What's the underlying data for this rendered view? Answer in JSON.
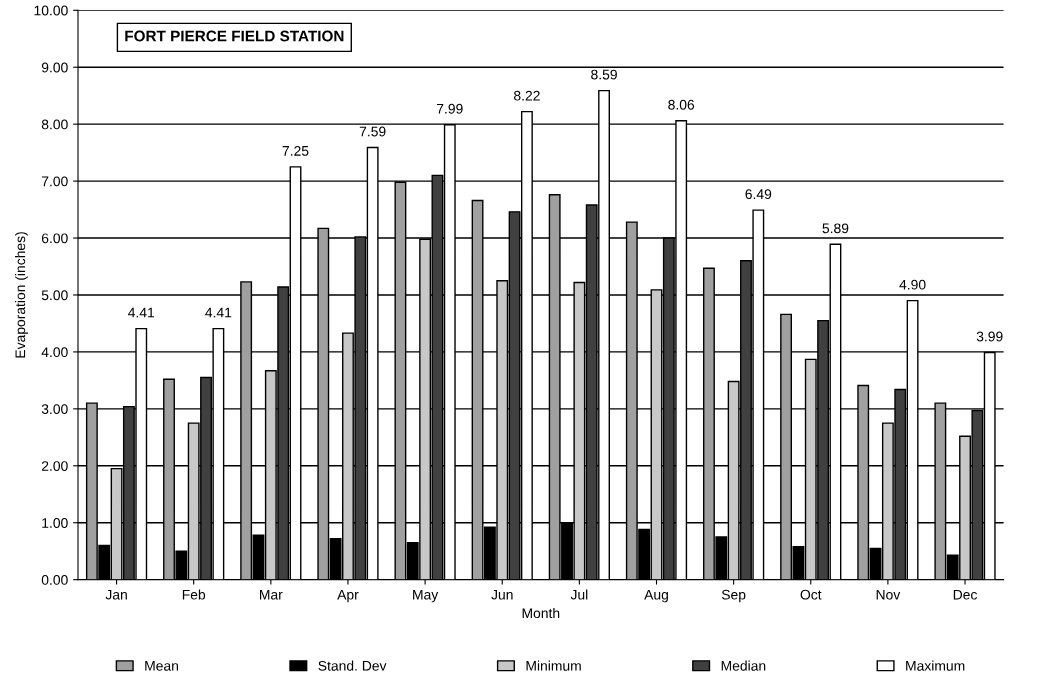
{
  "chart_data": {
    "type": "bar",
    "title": "FORT PIERCE FIELD STATION",
    "xlabel": "Month",
    "ylabel": "Evaporation (inches)",
    "categories": [
      "Jan",
      "Feb",
      "Mar",
      "Apr",
      "May",
      "Jun",
      "Jul",
      "Aug",
      "Sep",
      "Oct",
      "Nov",
      "Dec"
    ],
    "series": [
      {
        "name": "Mean",
        "color": "#a0a0a0",
        "values": [
          3.1,
          3.52,
          5.23,
          6.17,
          6.98,
          6.66,
          6.76,
          6.28,
          5.47,
          4.66,
          3.41,
          3.1
        ]
      },
      {
        "name": "Stand. Dev",
        "color": "#000000",
        "values": [
          0.6,
          0.5,
          0.78,
          0.72,
          0.65,
          0.92,
          0.99,
          0.88,
          0.75,
          0.58,
          0.55,
          0.43
        ]
      },
      {
        "name": "Minimum",
        "color": "#c8c8c8",
        "values": [
          1.95,
          2.75,
          3.67,
          4.33,
          5.98,
          5.25,
          5.22,
          5.09,
          3.48,
          3.87,
          2.75,
          2.52
        ]
      },
      {
        "name": "Median",
        "color": "#404040",
        "values": [
          3.04,
          3.55,
          5.14,
          6.02,
          7.1,
          6.46,
          6.58,
          6.0,
          5.6,
          4.55,
          3.34,
          2.97
        ]
      },
      {
        "name": "Maximum",
        "color": "#ffffff",
        "values": [
          4.41,
          4.41,
          7.25,
          7.59,
          7.99,
          8.22,
          8.59,
          8.06,
          6.49,
          5.89,
          4.9,
          3.99
        ],
        "value_labels": [
          "4.41",
          "4.41",
          "7.25",
          "7.59",
          "7.99",
          "8.22",
          "8.59",
          "8.06",
          "6.49",
          "5.89",
          "4.90",
          "3.99"
        ]
      }
    ],
    "ylim": [
      0,
      10
    ],
    "yticks": [
      {
        "value": 0,
        "label": "0.00"
      },
      {
        "value": 1,
        "label": "1.00"
      },
      {
        "value": 2,
        "label": "2.00"
      },
      {
        "value": 3,
        "label": "3.00"
      },
      {
        "value": 4,
        "label": "4.00"
      },
      {
        "value": 5,
        "label": "5.00"
      },
      {
        "value": 6,
        "label": "6.00"
      },
      {
        "value": 7,
        "label": "7.00"
      },
      {
        "value": 8,
        "label": "8.00"
      },
      {
        "value": 9,
        "label": "9.00"
      },
      {
        "value": 10,
        "label": "10.00"
      }
    ],
    "grid": "y",
    "legend": "bottom"
  }
}
